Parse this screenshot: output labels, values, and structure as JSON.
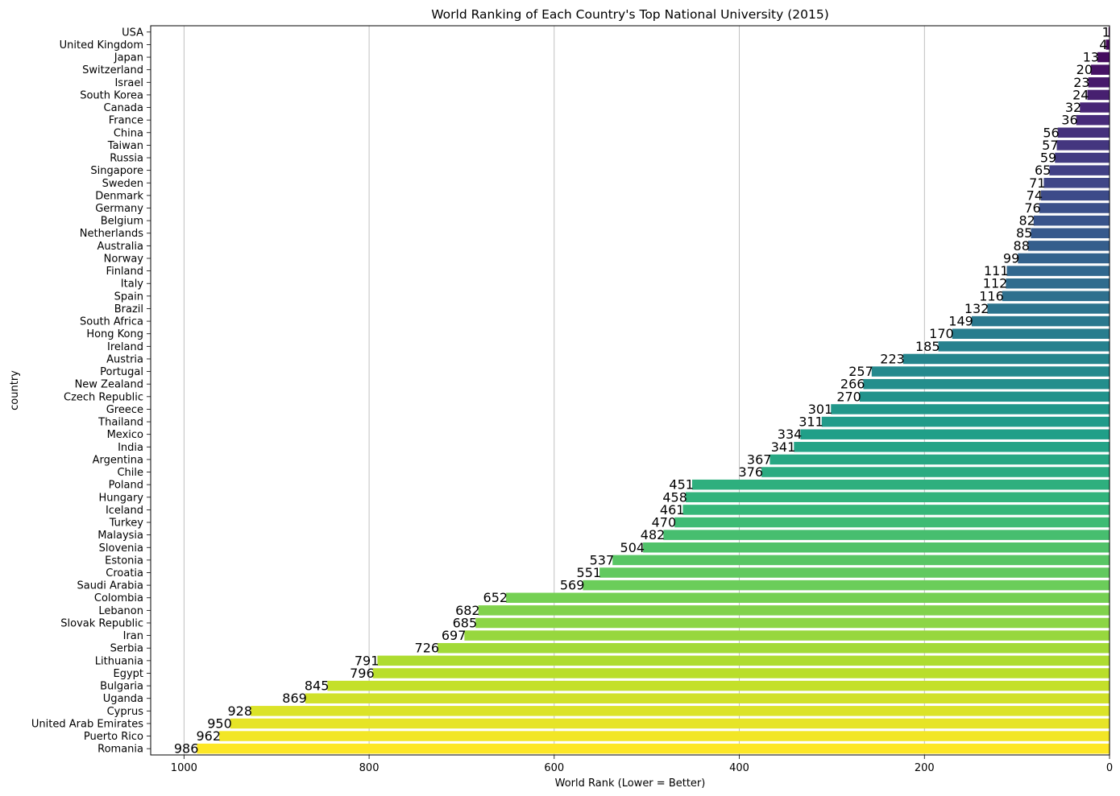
{
  "chart_data": {
    "type": "bar",
    "orientation": "horizontal",
    "title": "World Ranking of Each Country's Top National University (2015)",
    "xlabel": "World Rank (Lower = Better)",
    "ylabel": "country",
    "xlim": [
      1036,
      0
    ],
    "x_inverted": true,
    "xticks": [
      1000,
      800,
      600,
      400,
      200,
      0
    ],
    "grid": "x",
    "colormap": "viridis",
    "categories": [
      "USA",
      "United Kingdom",
      "Japan",
      "Switzerland",
      "Israel",
      "South Korea",
      "Canada",
      "France",
      "China",
      "Taiwan",
      "Russia",
      "Singapore",
      "Sweden",
      "Denmark",
      "Germany",
      "Belgium",
      "Netherlands",
      "Australia",
      "Norway",
      "Finland",
      "Italy",
      "Spain",
      "Brazil",
      "South Africa",
      "Hong Kong",
      "Ireland",
      "Austria",
      "Portugal",
      "New Zealand",
      "Czech Republic",
      "Greece",
      "Thailand",
      "Mexico",
      "India",
      "Argentina",
      "Chile",
      "Poland",
      "Hungary",
      "Iceland",
      "Turkey",
      "Malaysia",
      "Slovenia",
      "Estonia",
      "Croatia",
      "Saudi Arabia",
      "Colombia",
      "Lebanon",
      "Slovak Republic",
      "Iran",
      "Serbia",
      "Lithuania",
      "Egypt",
      "Bulgaria",
      "Uganda",
      "Cyprus",
      "United Arab Emirates",
      "Puerto Rico",
      "Romania"
    ],
    "values": [
      1,
      4,
      13,
      20,
      23,
      24,
      32,
      36,
      56,
      57,
      59,
      65,
      71,
      74,
      76,
      82,
      85,
      88,
      99,
      111,
      112,
      116,
      132,
      149,
      170,
      185,
      223,
      257,
      266,
      270,
      301,
      311,
      334,
      341,
      367,
      376,
      451,
      458,
      461,
      470,
      482,
      504,
      537,
      551,
      569,
      652,
      682,
      685,
      697,
      726,
      791,
      796,
      845,
      869,
      928,
      950,
      962,
      986
    ]
  }
}
